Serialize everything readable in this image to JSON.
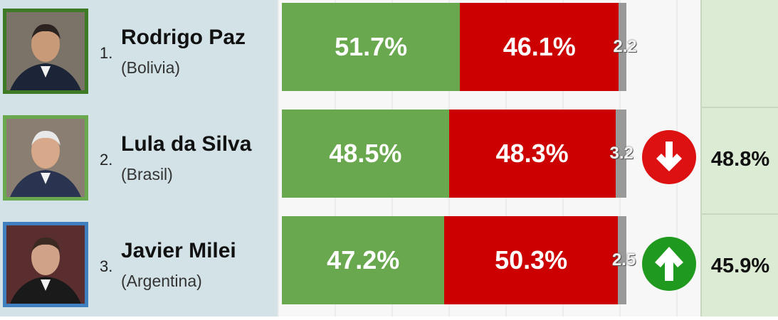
{
  "chart_data": {
    "type": "bar",
    "stacked": true,
    "categories": [
      "Rodrigo Paz",
      "Lula da Silva",
      "Javier Milei"
    ],
    "rows": [
      {
        "rank": "1.",
        "name": "Rodrigo Paz",
        "country": "(Bolivia)",
        "approve": 51.7,
        "approve_label": "51.7%",
        "disapprove": 46.1,
        "disapprove_label": "46.1%",
        "other": 2.2,
        "other_label": "2.2",
        "trend": null,
        "previous": ""
      },
      {
        "rank": "2.",
        "name": "Lula da Silva",
        "country": "(Brasil)",
        "approve": 48.5,
        "approve_label": "48.5%",
        "disapprove": 48.3,
        "disapprove_label": "48.3%",
        "other": 3.2,
        "other_label": "3.2",
        "trend": "down",
        "previous": "48.8%"
      },
      {
        "rank": "3.",
        "name": "Javier Milei",
        "country": "(Argentina)",
        "approve": 47.2,
        "approve_label": "47.2%",
        "disapprove": 50.3,
        "disapprove_label": "50.3%",
        "other": 2.5,
        "other_label": "2.5",
        "trend": "up",
        "previous": "45.9%"
      }
    ],
    "xlim": [
      0,
      100
    ]
  },
  "colors": {
    "approve": "#6aa84f",
    "disapprove": "#cc0000",
    "other": "#999999",
    "trend_down": "#dd1111",
    "trend_up": "#1f9a1f",
    "photo_frames": [
      "#3c7a24",
      "#6aa84f",
      "#3f7fbf"
    ]
  },
  "icons": {
    "trend_down": "arrow-down-icon",
    "trend_up": "arrow-up-icon"
  }
}
